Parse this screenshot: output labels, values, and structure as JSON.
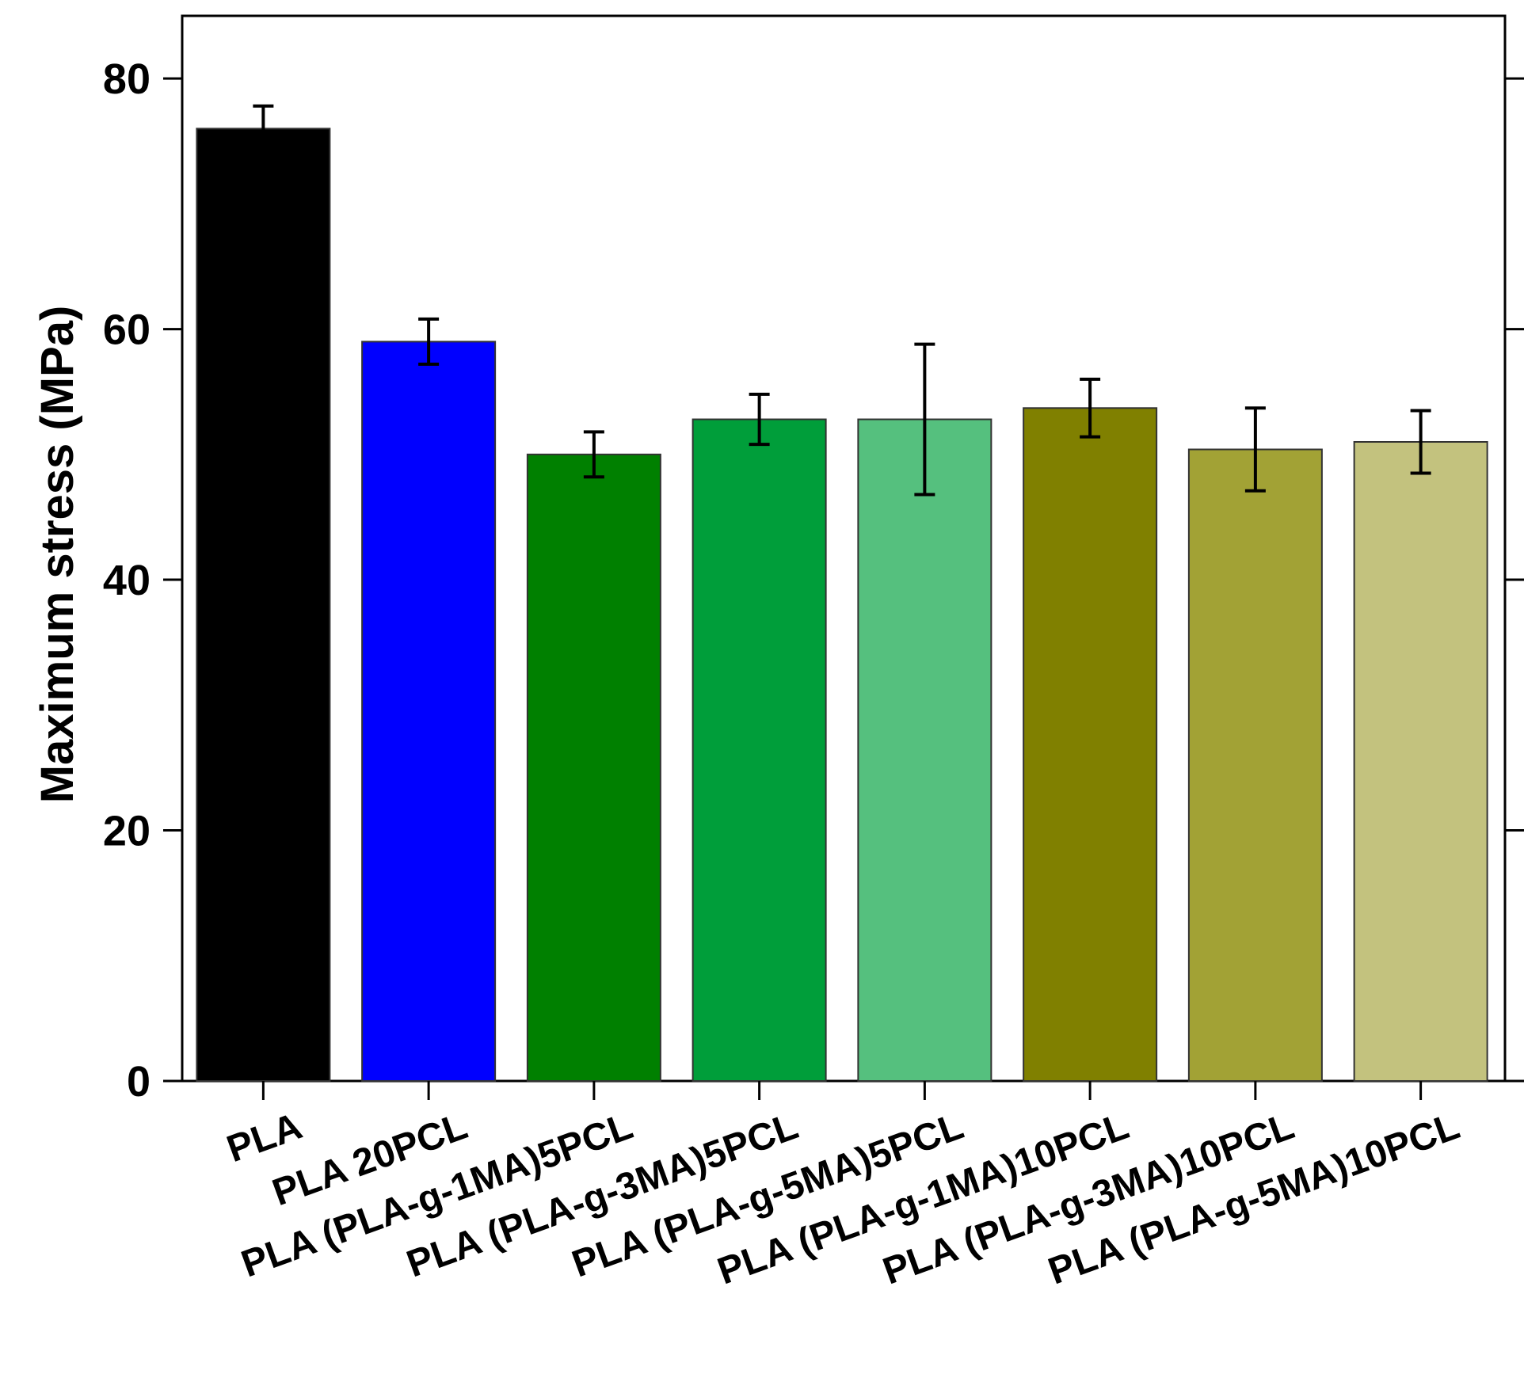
{
  "chart_data": {
    "type": "bar",
    "title": "",
    "xlabel": "",
    "ylabel": "Maximum stress (MPa)",
    "ylim": [
      0,
      85
    ],
    "yticks": [
      0,
      20,
      40,
      60,
      80
    ],
    "ytick_labels": [
      "0",
      "20",
      "40",
      "60",
      "80"
    ],
    "categories": [
      "PLA",
      "PLA 20PCL",
      "PLA (PLA-g-1MA)5PCL",
      "PLA (PLA-g-3MA)5PCL",
      "PLA (PLA-g-5MA)5PCL",
      "PLA (PLA-g-1MA)10PCL",
      "PLA (PLA-g-3MA)10PCL",
      "PLA (PLA-g-5MA)10PCL"
    ],
    "values": [
      76,
      59,
      50,
      52.8,
      52.8,
      53.7,
      50.4,
      51
    ],
    "errors": [
      1.8,
      1.8,
      1.8,
      2.0,
      6.0,
      2.3,
      3.3,
      2.5
    ],
    "colors": [
      "#000000",
      "#0000FF",
      "#008000",
      "#009E3A",
      "#55C07E",
      "#808000",
      "#A2A235",
      "#C3C27E"
    ],
    "grid": false
  }
}
